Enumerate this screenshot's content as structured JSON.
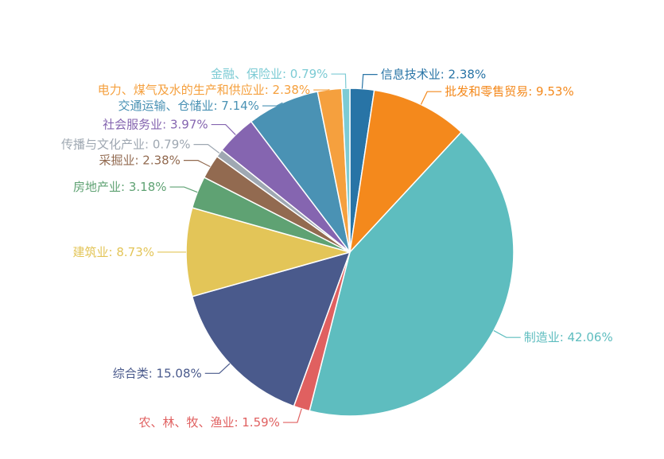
{
  "chart_data": {
    "type": "pie",
    "title": "",
    "label_format": "{name}: {value}%",
    "unit": "%",
    "start": "12 o'clock",
    "direction": "clockwise",
    "legend": "none",
    "slices": [
      {
        "name": "信息技术业",
        "value": 2.38,
        "color": "#2874a6"
      },
      {
        "name": "批发和零售贸易",
        "value": 9.53,
        "color": "#f4891c"
      },
      {
        "name": "制造业",
        "value": 42.06,
        "color": "#5ebdbf"
      },
      {
        "name": "农、林、牧、渔业",
        "value": 1.59,
        "color": "#e06060"
      },
      {
        "name": "综合类",
        "value": 15.08,
        "color": "#4a5a8c"
      },
      {
        "name": "建筑业",
        "value": 8.73,
        "color": "#e3c558"
      },
      {
        "name": "房地产业",
        "value": 3.18,
        "color": "#5fa273"
      },
      {
        "name": "采掘业",
        "value": 2.38,
        "color": "#926a50"
      },
      {
        "name": "传播与文化产业",
        "value": 0.79,
        "color": "#9fa8b2"
      },
      {
        "name": "社会服务业",
        "value": 3.97,
        "color": "#8565b0"
      },
      {
        "name": "交通运输、仓储业",
        "value": 7.14,
        "color": "#4a92b4"
      },
      {
        "name": "电力、煤气及水的生产和供应业",
        "value": 2.38,
        "color": "#f5a03e"
      },
      {
        "name": "金融、保险业",
        "value": 0.79,
        "color": "#7ccbd4"
      }
    ]
  }
}
